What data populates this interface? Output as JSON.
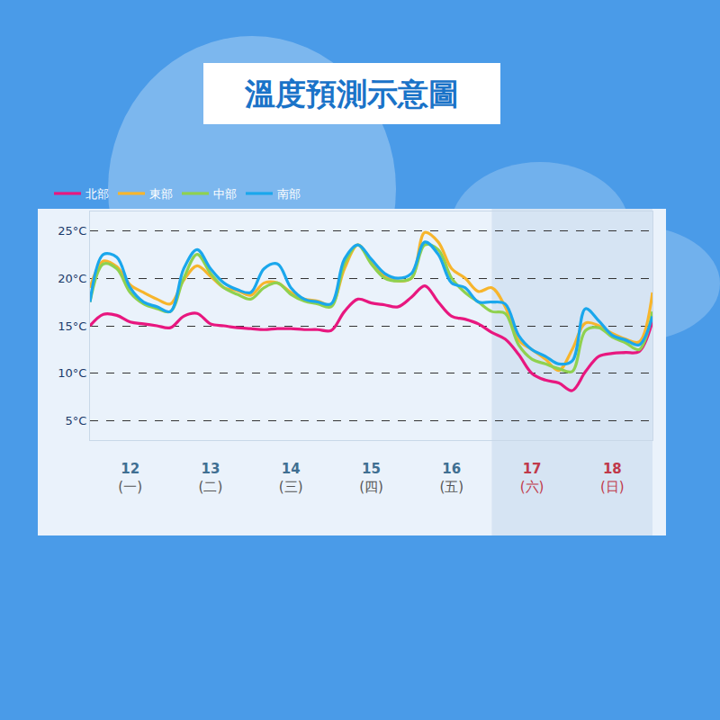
{
  "chart_data": {
    "type": "line",
    "title": "溫度預測示意圖",
    "categories": [
      null,
      null,
      null,
      "12\n(一)",
      null,
      null,
      null,
      null,
      null,
      "13\n(二)",
      null,
      null,
      null,
      null,
      null,
      "14\n(三)",
      null,
      null,
      null,
      null,
      null,
      "15\n(四)",
      null,
      null,
      null,
      null,
      null,
      "16\n(五)",
      null,
      null,
      null,
      null,
      null,
      "17\n(六)",
      null,
      null,
      null,
      null,
      null,
      "18\n(日)",
      null,
      null,
      null
    ],
    "series": [
      {
        "name": "北部",
        "color": "#e8177f",
        "values": [
          15.0,
          16.2,
          16.1,
          15.4,
          15.2,
          15.0,
          14.8,
          16.0,
          16.3,
          15.2,
          15.0,
          14.8,
          14.7,
          14.6,
          14.7,
          14.7,
          14.6,
          14.6,
          14.5,
          16.5,
          17.8,
          17.4,
          17.2,
          17.0,
          18.0,
          19.2,
          17.5,
          16.0,
          15.7,
          15.2,
          14.3,
          13.6,
          12.0,
          10.0,
          9.3,
          9.0,
          8.2,
          10.2,
          11.8,
          12.1,
          12.2,
          12.3,
          15.5
        ]
      },
      {
        "name": "東部",
        "color": "#f7b52c",
        "values": [
          19.0,
          21.8,
          21.2,
          19.3,
          18.5,
          17.8,
          17.3,
          19.8,
          21.3,
          20.2,
          19.0,
          18.7,
          18.2,
          19.5,
          19.5,
          18.5,
          17.8,
          17.6,
          17.2,
          21.0,
          23.5,
          21.8,
          20.2,
          19.7,
          20.0,
          24.8,
          23.8,
          21.0,
          20.0,
          18.6,
          19.0,
          17.0,
          13.5,
          12.5,
          11.5,
          10.3,
          12.5,
          15.3,
          15.0,
          14.2,
          13.6,
          13.3,
          18.5
        ]
      },
      {
        "name": "中部",
        "color": "#8fd14f",
        "values": [
          17.5,
          21.5,
          21.0,
          18.5,
          17.3,
          16.8,
          16.5,
          20.0,
          22.5,
          20.5,
          19.0,
          18.3,
          17.8,
          19.0,
          19.5,
          18.3,
          17.6,
          17.3,
          17.0,
          21.5,
          23.5,
          21.5,
          20.0,
          19.7,
          20.0,
          23.5,
          23.0,
          20.0,
          18.5,
          17.5,
          16.5,
          16.3,
          13.0,
          11.5,
          11.0,
          10.5,
          10.2,
          14.5,
          14.8,
          13.8,
          13.2,
          12.5,
          16.5
        ]
      },
      {
        "name": "南部",
        "color": "#1aa7ec",
        "values": [
          17.5,
          22.5,
          22.2,
          19.0,
          17.5,
          17.0,
          16.5,
          21.0,
          23.0,
          21.0,
          19.5,
          18.8,
          18.5,
          21.0,
          21.5,
          19.0,
          17.8,
          17.5,
          17.3,
          22.0,
          23.5,
          22.0,
          20.5,
          20.0,
          20.5,
          23.8,
          22.5,
          19.5,
          19.0,
          17.5,
          17.5,
          17.3,
          14.0,
          12.5,
          11.8,
          11.0,
          11.3,
          16.8,
          15.5,
          14.0,
          13.5,
          13.0,
          16.0
        ]
      }
    ],
    "ylim": [
      3,
      27
    ],
    "yticks": [
      {
        "value": 5,
        "label": "5°C"
      },
      {
        "value": 10,
        "label": "10°C"
      },
      {
        "value": 15,
        "label": "15°C"
      },
      {
        "value": 20,
        "label": "20°C"
      },
      {
        "value": 25,
        "label": "25°C"
      }
    ],
    "grid": true,
    "legend": "top-left"
  }
}
